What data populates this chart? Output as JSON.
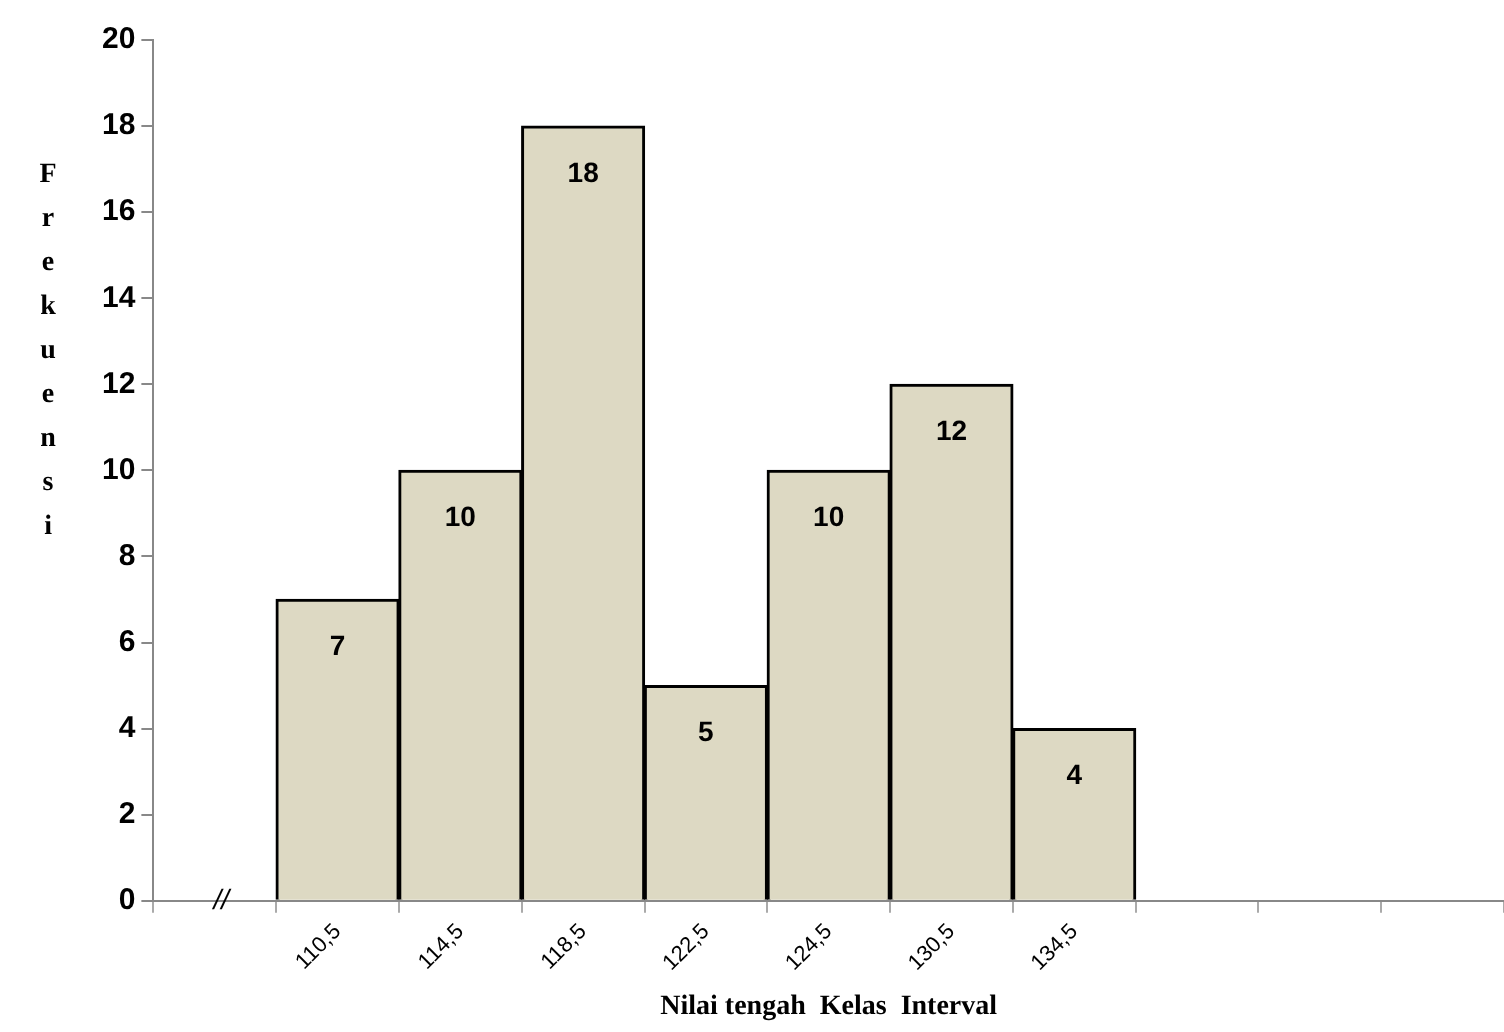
{
  "chart_data": {
    "type": "bar",
    "xlabel": "Nilai tengah  Kelas  Interval",
    "ylabel": "Frekuensi",
    "categories": [
      null,
      "110,5",
      "114,5",
      "118,5",
      "122,5",
      "124,5",
      "130,5",
      "134,5",
      null,
      null,
      null
    ],
    "values": [
      null,
      7,
      10,
      18,
      5,
      10,
      12,
      4,
      null,
      null,
      null
    ],
    "color": "#ddd9c3",
    "ylim": [
      0,
      20
    ],
    "yticks": [
      0,
      2,
      4,
      6,
      8,
      10,
      12,
      14,
      16,
      18,
      20
    ],
    "grid": false,
    "data_labels": true,
    "annotations": [
      "//"
    ]
  }
}
